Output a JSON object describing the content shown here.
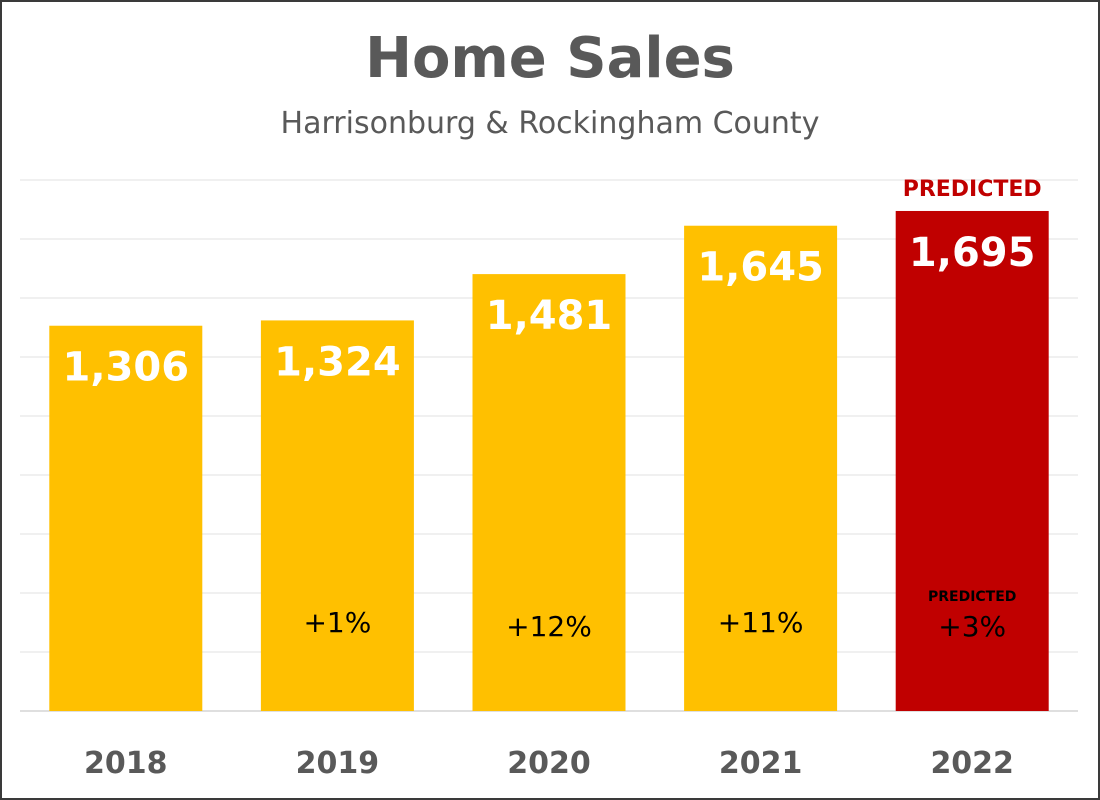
{
  "chart_data": {
    "type": "bar",
    "title": "Home Sales",
    "subtitle": "Harrisonburg & Rockingham County",
    "categories": [
      "2018",
      "2019",
      "2020",
      "2021",
      "2022"
    ],
    "values": [
      1306,
      1324,
      1481,
      1645,
      1695
    ],
    "value_labels": [
      "1,306",
      "1,324",
      "1,481",
      "1,645",
      "1,695"
    ],
    "change_labels": [
      "",
      "+1%",
      "+12%",
      "+11%",
      "+3%"
    ],
    "predicted_label": "PREDICTED",
    "predicted_index": 4,
    "ylim": [
      0,
      1800
    ],
    "grid": true,
    "colors": {
      "actual": "#ffc000",
      "predicted": "#c00000"
    }
  }
}
